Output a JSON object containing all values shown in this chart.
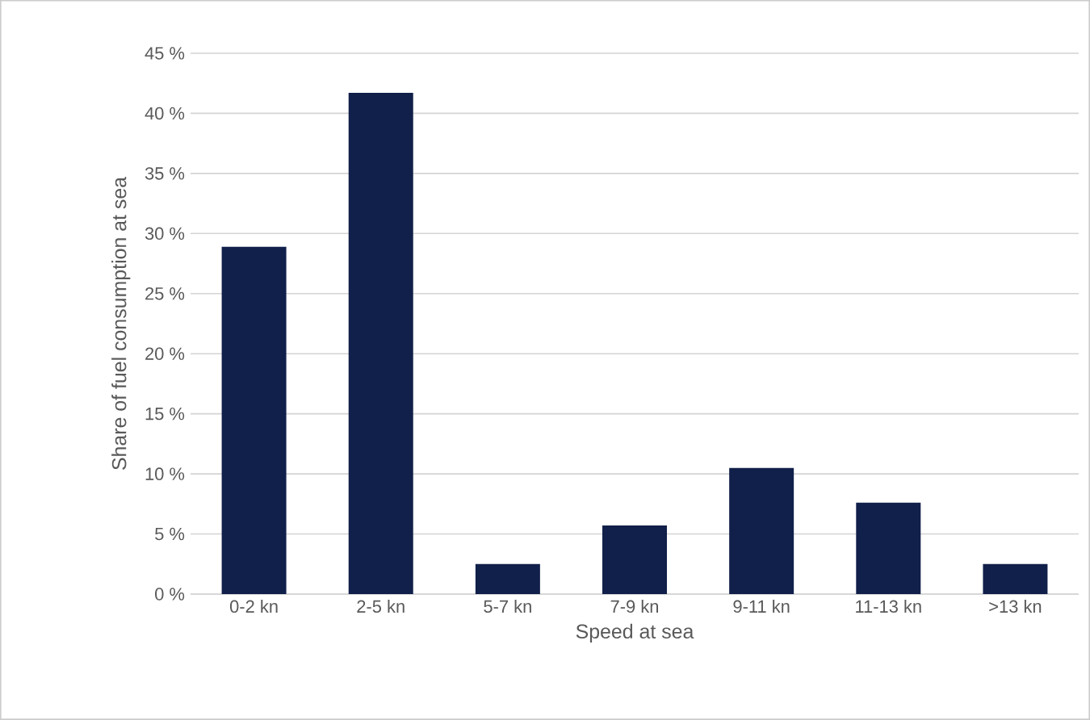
{
  "chart_data": {
    "type": "bar",
    "xlabel": "Speed at sea",
    "ylabel": "Share of fuel consumption at sea",
    "categories": [
      "0-2 kn",
      "2-5 kn",
      "5-7 kn",
      "7-9 kn",
      "9-11 kn",
      "11-13 kn",
      ">13 kn"
    ],
    "values": [
      28.9,
      41.7,
      2.5,
      5.7,
      10.5,
      7.6,
      2.5
    ],
    "color": "#11204a",
    "ylim": [
      0,
      45
    ],
    "yticks": [
      {
        "value": 0,
        "label": "0 %"
      },
      {
        "value": 5,
        "label": "5 %"
      },
      {
        "value": 10,
        "label": "10 %"
      },
      {
        "value": 15,
        "label": "15 %"
      },
      {
        "value": 20,
        "label": "20 %"
      },
      {
        "value": 25,
        "label": "25 %"
      },
      {
        "value": 30,
        "label": "30 %"
      },
      {
        "value": 35,
        "label": "35 %"
      },
      {
        "value": 40,
        "label": "40 %"
      },
      {
        "value": 45,
        "label": "45 %"
      }
    ],
    "grid": "y"
  }
}
